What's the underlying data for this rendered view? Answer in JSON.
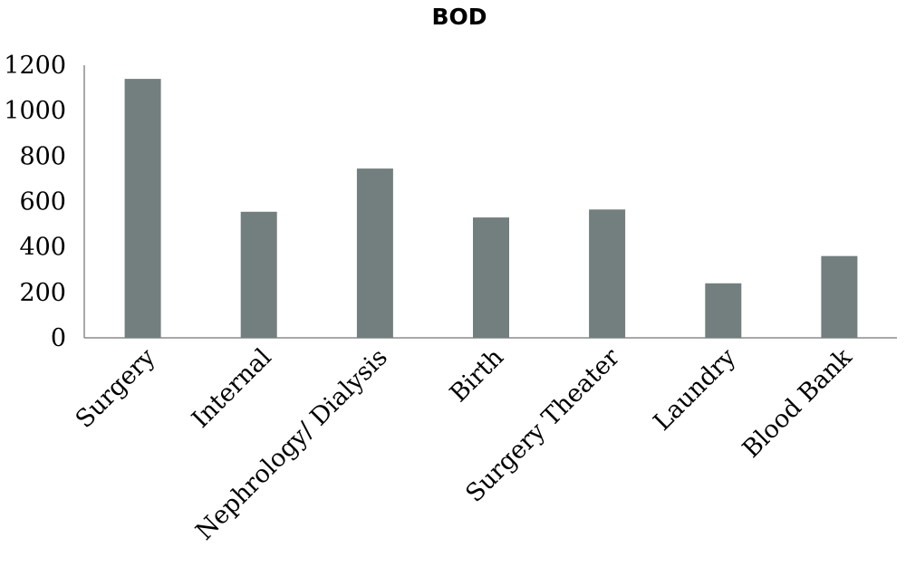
{
  "chart_data": {
    "type": "bar",
    "title": "BOD",
    "xlabel": "",
    "ylabel": "",
    "categories": [
      "Surgery",
      "Internal",
      "Nephrology/ Dialysis",
      "Birth",
      "Surgery Theater",
      "Laundry",
      "Blood Bank"
    ],
    "values": [
      1140,
      555,
      745,
      530,
      565,
      240,
      360
    ],
    "ylim": [
      0,
      1200
    ],
    "yticks": [
      "0",
      "200",
      "400",
      "600",
      "800",
      "1000",
      "1200"
    ],
    "grid": false,
    "legend": "none",
    "colors": {
      "bar": "#727f7e",
      "axis": "#8c8c8c",
      "text": "#000000"
    }
  }
}
